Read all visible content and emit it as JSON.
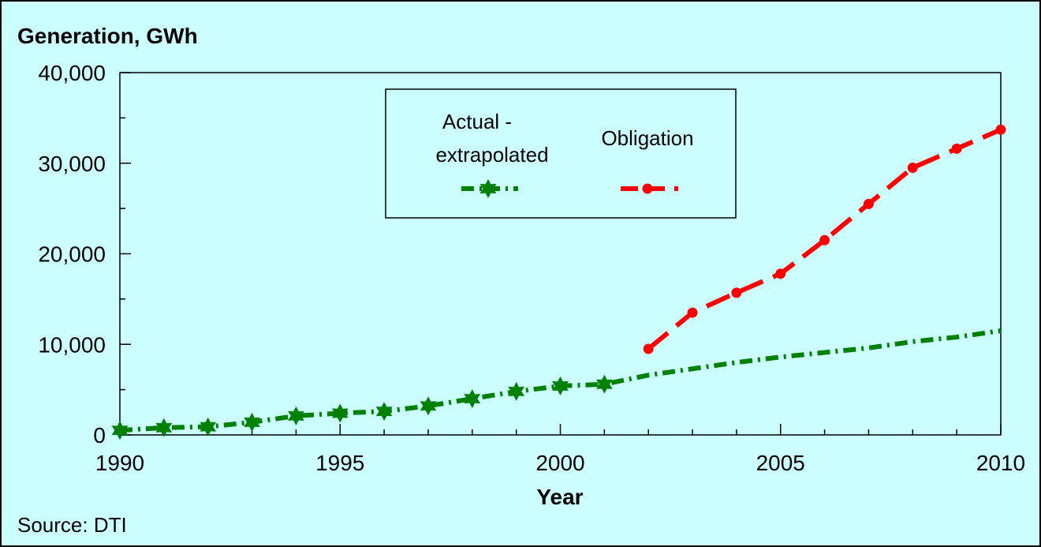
{
  "chart_data": {
    "type": "line",
    "title": "Generation, GWh",
    "xlabel": "Year",
    "ylabel": "",
    "source": "Source: DTI",
    "xlim": [
      1990,
      2010
    ],
    "ylim": [
      0,
      40000
    ],
    "x_ticks": [
      "1990",
      "1995",
      "2000",
      "2005",
      "2010"
    ],
    "y_ticks": [
      "0",
      "10,000",
      "20,000",
      "30,000",
      "40,000"
    ],
    "legend_position": "top-center, boxed",
    "grid": false,
    "series": [
      {
        "name": "Actual - extrapolated",
        "color": "#008000",
        "marker": "star",
        "line_style": "dash-dot",
        "x": [
          1990,
          1991,
          1992,
          1993,
          1994,
          1995,
          1996,
          1997,
          1998,
          1999,
          2000,
          2001,
          2002,
          2003,
          2004,
          2005,
          2006,
          2007,
          2008,
          2009,
          2010
        ],
        "y": [
          500,
          800,
          900,
          1400,
          2100,
          2400,
          2600,
          3200,
          4000,
          4800,
          5400,
          5600,
          6600,
          7300,
          8000,
          8600,
          9100,
          9600,
          10300,
          10800,
          11500
        ],
        "marked_points": 12
      },
      {
        "name": "Obligation",
        "color": "#ff0000",
        "marker": "circle",
        "line_style": "long-dash",
        "x": [
          2002,
          2003,
          2004,
          2005,
          2006,
          2007,
          2008,
          2009,
          2010
        ],
        "y": [
          9500,
          13500,
          15700,
          17800,
          21500,
          25500,
          29500,
          31600,
          33700
        ]
      }
    ]
  }
}
